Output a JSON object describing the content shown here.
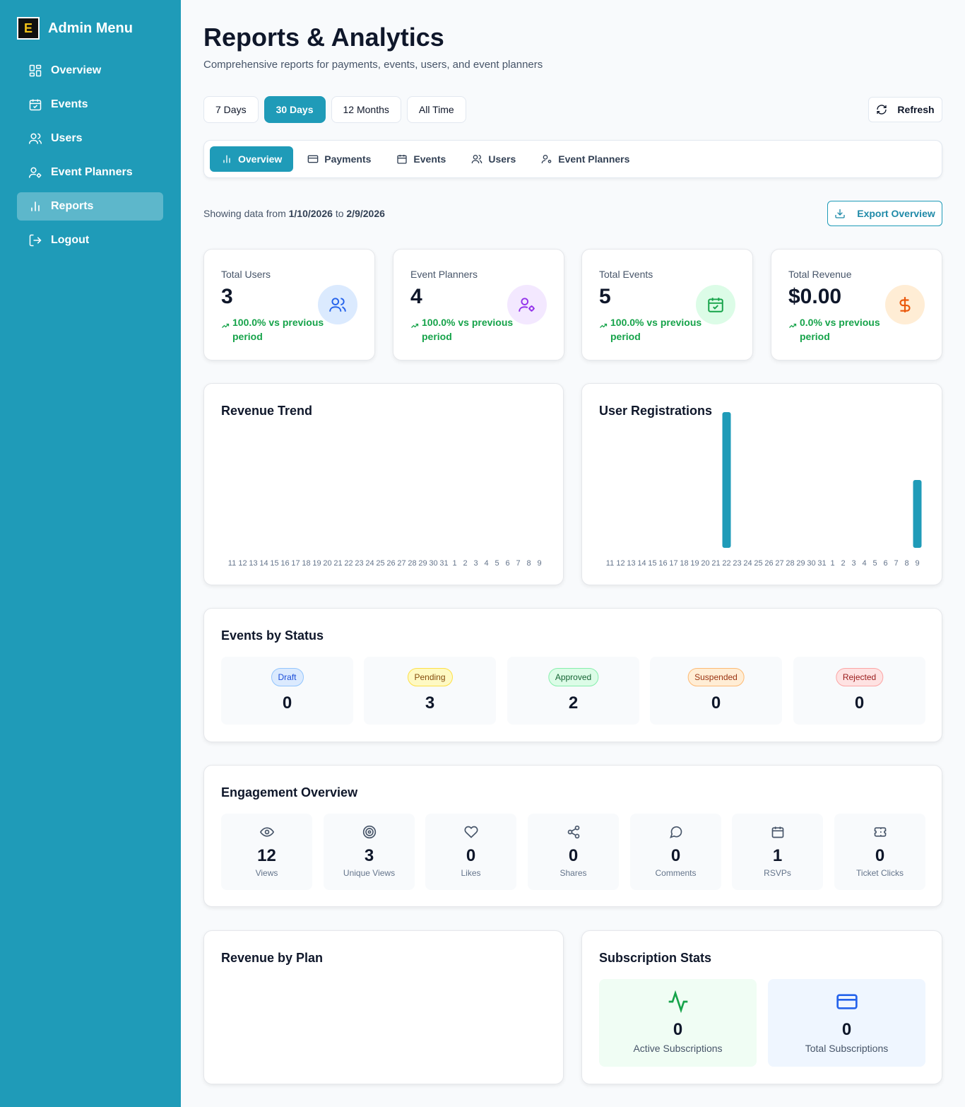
{
  "sidebar": {
    "brand_title": "Admin Menu",
    "logo_letter": "E",
    "items": [
      {
        "label": "Overview",
        "icon": "dashboard-icon"
      },
      {
        "label": "Events",
        "icon": "calendar-icon"
      },
      {
        "label": "Users",
        "icon": "users-icon"
      },
      {
        "label": "Event Planners",
        "icon": "user-cog-icon"
      },
      {
        "label": "Reports",
        "icon": "bar-chart-icon",
        "active": true
      },
      {
        "label": "Logout",
        "icon": "logout-icon"
      }
    ]
  },
  "header": {
    "title": "Reports & Analytics",
    "subtitle": "Comprehensive reports for payments, events, users, and event planners"
  },
  "ranges": {
    "options": [
      "7 Days",
      "30 Days",
      "12 Months",
      "All Time"
    ],
    "selected": "30 Days",
    "refresh_label": "Refresh"
  },
  "tabs": [
    {
      "label": "Overview",
      "icon": "bar-chart-icon",
      "active": true
    },
    {
      "label": "Payments",
      "icon": "credit-card-icon"
    },
    {
      "label": "Events",
      "icon": "calendar-icon"
    },
    {
      "label": "Users",
      "icon": "users-icon"
    },
    {
      "label": "Event Planners",
      "icon": "user-cog-icon"
    }
  ],
  "date_range": {
    "prefix": "Showing data from",
    "start": "1/10/2026",
    "joiner": "to",
    "end": "2/9/2026",
    "export_label": "Export Overview"
  },
  "stats": [
    {
      "label": "Total Users",
      "value": "3",
      "change": "100.0% vs previous period",
      "icon": "users-icon",
      "icon_color": "#2563eb",
      "icon_bg": "#dbeafe"
    },
    {
      "label": "Event Planners",
      "value": "4",
      "change": "100.0% vs previous period",
      "icon": "user-cog-icon",
      "icon_color": "#9333ea",
      "icon_bg": "#f3e8ff"
    },
    {
      "label": "Total Events",
      "value": "5",
      "change": "100.0% vs previous period",
      "icon": "calendar-check-icon",
      "icon_color": "#16a34a",
      "icon_bg": "#dcfce7"
    },
    {
      "label": "Total Revenue",
      "value": "$0.00",
      "change": "0.0% vs previous period",
      "icon": "dollar-icon",
      "icon_color": "#ea580c",
      "icon_bg": "#ffedd5"
    }
  ],
  "revenue_trend": {
    "title": "Revenue Trend"
  },
  "user_registrations": {
    "title": "User Registrations"
  },
  "chart_data": [
    {
      "type": "bar",
      "title": "Revenue Trend",
      "categories": [
        "11",
        "12",
        "13",
        "14",
        "15",
        "16",
        "17",
        "18",
        "19",
        "20",
        "21",
        "22",
        "23",
        "24",
        "25",
        "26",
        "27",
        "28",
        "29",
        "30",
        "31",
        "1",
        "2",
        "3",
        "4",
        "5",
        "6",
        "7",
        "8",
        "9"
      ],
      "values": [
        0,
        0,
        0,
        0,
        0,
        0,
        0,
        0,
        0,
        0,
        0,
        0,
        0,
        0,
        0,
        0,
        0,
        0,
        0,
        0,
        0,
        0,
        0,
        0,
        0,
        0,
        0,
        0,
        0,
        0
      ]
    },
    {
      "type": "bar",
      "title": "User Registrations",
      "categories": [
        "11",
        "12",
        "13",
        "14",
        "15",
        "16",
        "17",
        "18",
        "19",
        "20",
        "21",
        "22",
        "23",
        "24",
        "25",
        "26",
        "27",
        "28",
        "29",
        "30",
        "31",
        "1",
        "2",
        "3",
        "4",
        "5",
        "6",
        "7",
        "8",
        "9"
      ],
      "values": [
        0,
        0,
        0,
        0,
        0,
        0,
        0,
        0,
        0,
        0,
        0,
        2,
        0,
        0,
        0,
        0,
        0,
        0,
        0,
        0,
        0,
        0,
        0,
        0,
        0,
        0,
        0,
        0,
        0,
        1
      ],
      "color": "#1f9bb8"
    }
  ],
  "events_by_status": {
    "title": "Events by Status",
    "items": [
      {
        "label": "Draft",
        "count": "0",
        "color": "#1d4ed8",
        "bg": "#dbeafe",
        "border": "#93c5fd"
      },
      {
        "label": "Pending",
        "count": "3",
        "color": "#854d0e",
        "bg": "#fef9c3",
        "border": "#fde047"
      },
      {
        "label": "Approved",
        "count": "2",
        "color": "#166534",
        "bg": "#dcfce7",
        "border": "#86efac"
      },
      {
        "label": "Suspended",
        "count": "0",
        "color": "#9a3412",
        "bg": "#ffedd5",
        "border": "#fdba74"
      },
      {
        "label": "Rejected",
        "count": "0",
        "color": "#991b1b",
        "bg": "#fee2e2",
        "border": "#fca5a5"
      }
    ]
  },
  "engagement": {
    "title": "Engagement Overview",
    "items": [
      {
        "label": "Views",
        "value": "12",
        "icon": "eye-icon"
      },
      {
        "label": "Unique Views",
        "value": "3",
        "icon": "target-icon"
      },
      {
        "label": "Likes",
        "value": "0",
        "icon": "heart-icon"
      },
      {
        "label": "Shares",
        "value": "0",
        "icon": "share-icon"
      },
      {
        "label": "Comments",
        "value": "0",
        "icon": "comment-icon"
      },
      {
        "label": "RSVPs",
        "value": "1",
        "icon": "calendar-icon"
      },
      {
        "label": "Ticket Clicks",
        "value": "0",
        "icon": "ticket-icon"
      }
    ]
  },
  "revenue_by_plan": {
    "title": "Revenue by Plan"
  },
  "subscription_stats": {
    "title": "Subscription Stats",
    "active": {
      "label": "Active Subscriptions",
      "value": "0",
      "icon": "activity-icon",
      "color": "#16a34a",
      "bg": "#f0fdf4"
    },
    "total": {
      "label": "Total Subscriptions",
      "value": "0",
      "icon": "credit-card-icon",
      "color": "#2563eb",
      "bg": "#eff6ff"
    }
  }
}
